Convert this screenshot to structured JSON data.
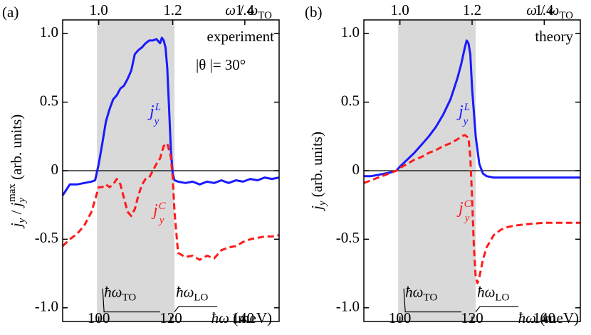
{
  "chart_data": [
    {
      "type": "line",
      "panel_label": "(a)",
      "ylabel": {
        "base": "j",
        "sub1": "y",
        "mid": " / ",
        "base2": "j",
        "sub2": "y",
        "sup2": "max",
        "tail": " (arb. units)"
      },
      "xlabel": {
        "prefix": "ħω",
        "unit": " (meV)"
      },
      "top_axis_label": {
        "num": "ω",
        "sep": " / ",
        "den": "ω",
        "den_sub": "TO"
      },
      "annotation_lines": [
        "experiment",
        "|θ |= 30°"
      ],
      "xlim": [
        90,
        150
      ],
      "ylim": [
        -1.1,
        1.1
      ],
      "x_ticks": [
        100,
        120,
        140
      ],
      "y_ticks": [
        1.0,
        0.5,
        0,
        -0.5,
        -1.0
      ],
      "y_tick_labels": [
        "1.0",
        "0.5",
        "0",
        "-0.5",
        "-1.0"
      ],
      "top_ticks": [
        {
          "label": "1.0",
          "x_meV": 100
        },
        {
          "label": "1.2",
          "x_meV": 120.5
        },
        {
          "label": "1.4",
          "x_meV": 140.5
        }
      ],
      "shaded_band": {
        "x_from": 99.5,
        "x_to": 121,
        "label_left": "TO",
        "label_right": "LO"
      },
      "series": [
        {
          "name": "j_y^L",
          "label_base": "j",
          "label_sub": "y",
          "label_sup": "L",
          "color": "#1a1aff",
          "style": "solid",
          "x": [
            90,
            91,
            92,
            94,
            96,
            98,
            99,
            100,
            101,
            102,
            103,
            104,
            105,
            106,
            107,
            108,
            109,
            110,
            111,
            112,
            113,
            114,
            115,
            116,
            117,
            117.5,
            118,
            118.5,
            119,
            119.5,
            120,
            120.5,
            121,
            122,
            124,
            126,
            128,
            130,
            132,
            134,
            136,
            138,
            140,
            142,
            144,
            146,
            148,
            150
          ],
          "y": [
            -0.18,
            -0.14,
            -0.1,
            -0.1,
            -0.09,
            -0.08,
            -0.07,
            0.05,
            0.2,
            0.36,
            0.45,
            0.52,
            0.55,
            0.6,
            0.62,
            0.67,
            0.73,
            0.85,
            0.88,
            0.9,
            0.93,
            0.95,
            0.95,
            0.96,
            0.93,
            0.97,
            0.95,
            0.9,
            0.75,
            0.45,
            0.15,
            -0.02,
            -0.07,
            -0.08,
            -0.09,
            -0.08,
            -0.1,
            -0.08,
            -0.09,
            -0.07,
            -0.09,
            -0.07,
            -0.08,
            -0.06,
            -0.07,
            -0.05,
            -0.06,
            -0.05
          ]
        },
        {
          "name": "j_y^C",
          "label_base": "j",
          "label_sub": "y",
          "label_sup": "C",
          "color": "#ff1a1a",
          "style": "dashed",
          "x": [
            90,
            92,
            94,
            96,
            98,
            100,
            101,
            102,
            103,
            104,
            105,
            106,
            107,
            108,
            109,
            110,
            111,
            112,
            113,
            114,
            115,
            116,
            117,
            118,
            119,
            120,
            120.5,
            121,
            122,
            124,
            126,
            128,
            130,
            132,
            134,
            136,
            138,
            140,
            142,
            144,
            146,
            148,
            150
          ],
          "y": [
            -0.55,
            -0.5,
            -0.46,
            -0.4,
            -0.3,
            -0.12,
            -0.12,
            -0.1,
            -0.12,
            -0.1,
            -0.06,
            -0.1,
            -0.2,
            -0.3,
            -0.33,
            -0.28,
            -0.18,
            -0.1,
            -0.06,
            -0.05,
            0.0,
            0.05,
            0.09,
            0.18,
            0.2,
            0.1,
            -0.05,
            -0.3,
            -0.6,
            -0.63,
            -0.62,
            -0.65,
            -0.62,
            -0.64,
            -0.58,
            -0.56,
            -0.55,
            -0.52,
            -0.5,
            -0.49,
            -0.48,
            -0.48,
            -0.47
          ]
        }
      ]
    },
    {
      "type": "line",
      "panel_label": "(b)",
      "ylabel": {
        "base": "j",
        "sub1": "y",
        "tail": " (arb. units)"
      },
      "xlabel": {
        "prefix": "ħω",
        "unit": " (meV)"
      },
      "top_axis_label": {
        "num": "ω",
        "sep": " / ",
        "den": "ω",
        "den_sub": "TO"
      },
      "annotation_lines": [
        "theory"
      ],
      "xlim": [
        90,
        150
      ],
      "ylim": [
        -1.1,
        1.1
      ],
      "x_ticks": [
        100,
        120,
        140
      ],
      "y_ticks": [
        1.0,
        0.5,
        0,
        -0.5,
        -1.0
      ],
      "y_tick_labels": [
        "1.0",
        "0.5",
        "0",
        "-0.5",
        "-1.0"
      ],
      "top_ticks": [
        {
          "label": "1.0",
          "x_meV": 100
        },
        {
          "label": "1.2",
          "x_meV": 120
        },
        {
          "label": "1.4",
          "x_meV": 140
        }
      ],
      "shaded_band": {
        "x_from": 99.5,
        "x_to": 121,
        "label_left": "TO",
        "label_right": "LO"
      },
      "series": [
        {
          "name": "j_y^L",
          "label_base": "j",
          "label_sub": "y",
          "label_sup": "L",
          "color": "#1a1aff",
          "style": "solid",
          "x": [
            90,
            92,
            94,
            96,
            98,
            99,
            100,
            102,
            104,
            106,
            108,
            110,
            112,
            114,
            115,
            116,
            117,
            118,
            118.5,
            119,
            119.5,
            120,
            121,
            122,
            123,
            124,
            126,
            128,
            130,
            135,
            140,
            145,
            150
          ],
          "y": [
            -0.04,
            -0.04,
            -0.03,
            -0.02,
            -0.01,
            0.0,
            0.03,
            0.08,
            0.13,
            0.19,
            0.25,
            0.32,
            0.41,
            0.52,
            0.6,
            0.68,
            0.78,
            0.9,
            0.95,
            0.93,
            0.85,
            0.6,
            0.25,
            0.05,
            -0.02,
            -0.04,
            -0.05,
            -0.05,
            -0.05,
            -0.05,
            -0.05,
            -0.05,
            -0.05
          ]
        },
        {
          "name": "j_y^C",
          "label_base": "j",
          "label_sub": "y",
          "label_sup": "C",
          "color": "#ff1a1a",
          "style": "dashed",
          "x": [
            90,
            92,
            94,
            96,
            98,
            99,
            100,
            102,
            104,
            106,
            108,
            110,
            112,
            114,
            116,
            117,
            118,
            119,
            119.5,
            120,
            120.5,
            121,
            121.5,
            122,
            123,
            124,
            126,
            128,
            130,
            132,
            135,
            140,
            145,
            150
          ],
          "y": [
            -0.09,
            -0.07,
            -0.05,
            -0.03,
            -0.01,
            0.0,
            0.02,
            0.05,
            0.08,
            0.1,
            0.13,
            0.15,
            0.18,
            0.2,
            0.23,
            0.25,
            0.26,
            0.24,
            0.1,
            -0.2,
            -0.55,
            -0.78,
            -0.82,
            -0.78,
            -0.65,
            -0.56,
            -0.47,
            -0.43,
            -0.41,
            -0.4,
            -0.39,
            -0.38,
            -0.38,
            -0.38
          ]
        }
      ]
    }
  ]
}
